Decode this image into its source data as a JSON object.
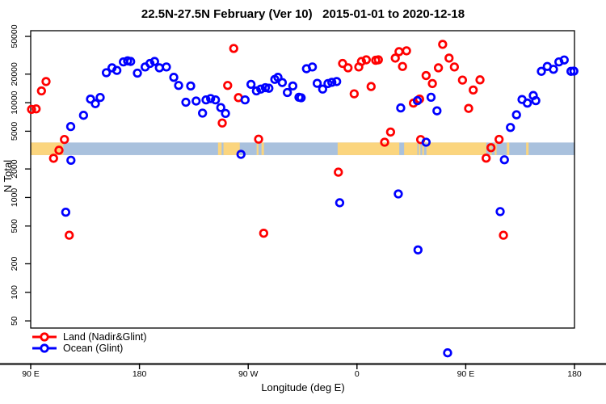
{
  "chart_data": {
    "type": "scatter",
    "title": "22.5N-27.5N February (Ver 10)   2015-01-01 to 2020-12-18",
    "xlabel": "Longitude (deg E)",
    "ylabel": "N Total",
    "x_axis": {
      "range": [
        90,
        540
      ],
      "ticks": [
        {
          "value": 90,
          "label": "90 E"
        },
        {
          "value": 180,
          "label": "180"
        },
        {
          "value": 270,
          "label": "90 W"
        },
        {
          "value": 360,
          "label": "0"
        },
        {
          "value": 450,
          "label": "90 E"
        },
        {
          "value": 540,
          "label": "180"
        }
      ]
    },
    "y_axis": {
      "scale": "log",
      "range": [
        42,
        57400
      ],
      "ticks": [
        50,
        100,
        200,
        500,
        1000,
        2000,
        5000,
        10000,
        20000,
        50000
      ]
    },
    "map_strip": {
      "value_range": [
        2800,
        3800
      ],
      "ocean_color": "#A9C1DD",
      "land_color": "#FBD57E",
      "land_segments_lon": [
        [
          90,
          117
        ],
        [
          245,
          248
        ],
        [
          249.5,
          263
        ],
        [
          277,
          278.5
        ],
        [
          281,
          283
        ],
        [
          344,
          395
        ],
        [
          399,
          410
        ],
        [
          411,
          412.5
        ],
        [
          414,
          415.5
        ],
        [
          417.5,
          467
        ],
        [
          470,
          471.5
        ],
        [
          474,
          475.5
        ],
        [
          484,
          486
        ],
        [
          500,
          502
        ]
      ]
    },
    "legend_position": "bottom-left",
    "series": [
      {
        "name": "Land (Nadir&Glint)",
        "color": "#FF0000",
        "points": [
          [
            90.7,
            8500
          ],
          [
            94.5,
            8600
          ],
          [
            98.9,
            13300
          ],
          [
            102.7,
            16700
          ],
          [
            108.9,
            2590
          ],
          [
            113.4,
            3150
          ],
          [
            117.9,
            4090
          ],
          [
            121.9,
            400
          ],
          [
            248.5,
            6100
          ],
          [
            253.0,
            15200
          ],
          [
            258.0,
            37300
          ],
          [
            261.9,
            11300
          ],
          [
            278.6,
            4120
          ],
          [
            282.8,
            420
          ],
          [
            344.6,
            1850
          ],
          [
            348.1,
            25900
          ],
          [
            352.6,
            23300
          ],
          [
            357.7,
            12400
          ],
          [
            361.5,
            23800
          ],
          [
            363.7,
            27200
          ],
          [
            367.7,
            28300
          ],
          [
            371.7,
            14800
          ],
          [
            375.5,
            28000
          ],
          [
            377.7,
            28300
          ],
          [
            382.9,
            3830
          ],
          [
            387.8,
            4900
          ],
          [
            391.7,
            29500
          ],
          [
            394.8,
            34500
          ],
          [
            397.7,
            24100
          ],
          [
            401.0,
            35200
          ],
          [
            406.7,
            9900
          ],
          [
            411.8,
            10900
          ],
          [
            412.7,
            4080
          ],
          [
            417.2,
            19300
          ],
          [
            422.4,
            15900
          ],
          [
            427.4,
            23300
          ],
          [
            430.9,
            41200
          ],
          [
            436.2,
            29500
          ],
          [
            440.6,
            23800
          ],
          [
            447.3,
            17300
          ],
          [
            452.4,
            8700
          ],
          [
            456.2,
            13600
          ],
          [
            461.8,
            17400
          ],
          [
            466.9,
            2600
          ],
          [
            470.9,
            3350
          ],
          [
            477.6,
            4100
          ],
          [
            481.2,
            400
          ]
        ]
      },
      {
        "name": "Ocean (Glint)",
        "color": "#0000FF",
        "points": [
          [
            119.0,
            700
          ],
          [
            123.1,
            5600
          ],
          [
            123.3,
            2470
          ],
          [
            133.7,
            7360
          ],
          [
            139.5,
            10900
          ],
          [
            143.5,
            9760
          ],
          [
            147.5,
            11350
          ],
          [
            152.6,
            20700
          ],
          [
            157.3,
            23300
          ],
          [
            161.3,
            21900
          ],
          [
            166.7,
            26900
          ],
          [
            170.2,
            27600
          ],
          [
            172.7,
            27200
          ],
          [
            178.3,
            20500
          ],
          [
            184.7,
            23800
          ],
          [
            188.7,
            25900
          ],
          [
            192.5,
            27200
          ],
          [
            196.5,
            23300
          ],
          [
            202.3,
            23800
          ],
          [
            208.4,
            18500
          ],
          [
            212.4,
            15200
          ],
          [
            218.4,
            10100
          ],
          [
            222.4,
            15000
          ],
          [
            226.9,
            10400
          ],
          [
            232.2,
            7760
          ],
          [
            235.1,
            10700
          ],
          [
            238.9,
            11050
          ],
          [
            242.9,
            10700
          ],
          [
            247.3,
            8880
          ],
          [
            251.2,
            7700
          ],
          [
            264.0,
            2850
          ],
          [
            267.4,
            10700
          ],
          [
            272.3,
            15600
          ],
          [
            276.8,
            13300
          ],
          [
            280.4,
            13900
          ],
          [
            284.2,
            14400
          ],
          [
            287.1,
            14200
          ],
          [
            292.0,
            17600
          ],
          [
            294.6,
            18500
          ],
          [
            298.2,
            16300
          ],
          [
            302.4,
            12800
          ],
          [
            306.9,
            15000
          ],
          [
            312.0,
            11400
          ],
          [
            313.8,
            11270
          ],
          [
            318.2,
            22800
          ],
          [
            323.1,
            23800
          ],
          [
            327.1,
            16000
          ],
          [
            331.6,
            13900
          ],
          [
            336.0,
            15900
          ],
          [
            339.2,
            16400
          ],
          [
            343.2,
            16700
          ],
          [
            345.7,
            880
          ],
          [
            394.2,
            1090
          ],
          [
            396.2,
            8800
          ],
          [
            410.0,
            10500
          ],
          [
            410.5,
            280
          ],
          [
            417.2,
            3830
          ],
          [
            421.3,
            11400
          ],
          [
            426.2,
            8200
          ],
          [
            435.0,
            23
          ],
          [
            478.5,
            710
          ],
          [
            482.0,
            2500
          ],
          [
            487.0,
            5480
          ],
          [
            492.0,
            7450
          ],
          [
            496.6,
            10800
          ],
          [
            501.0,
            9900
          ],
          [
            505.9,
            11900
          ],
          [
            508.0,
            10500
          ],
          [
            512.6,
            21400
          ],
          [
            517.5,
            24100
          ],
          [
            522.6,
            22500
          ],
          [
            527.1,
            26900
          ],
          [
            531.5,
            28200
          ],
          [
            537.1,
            21400
          ],
          [
            539.5,
            21500
          ]
        ]
      }
    ]
  }
}
